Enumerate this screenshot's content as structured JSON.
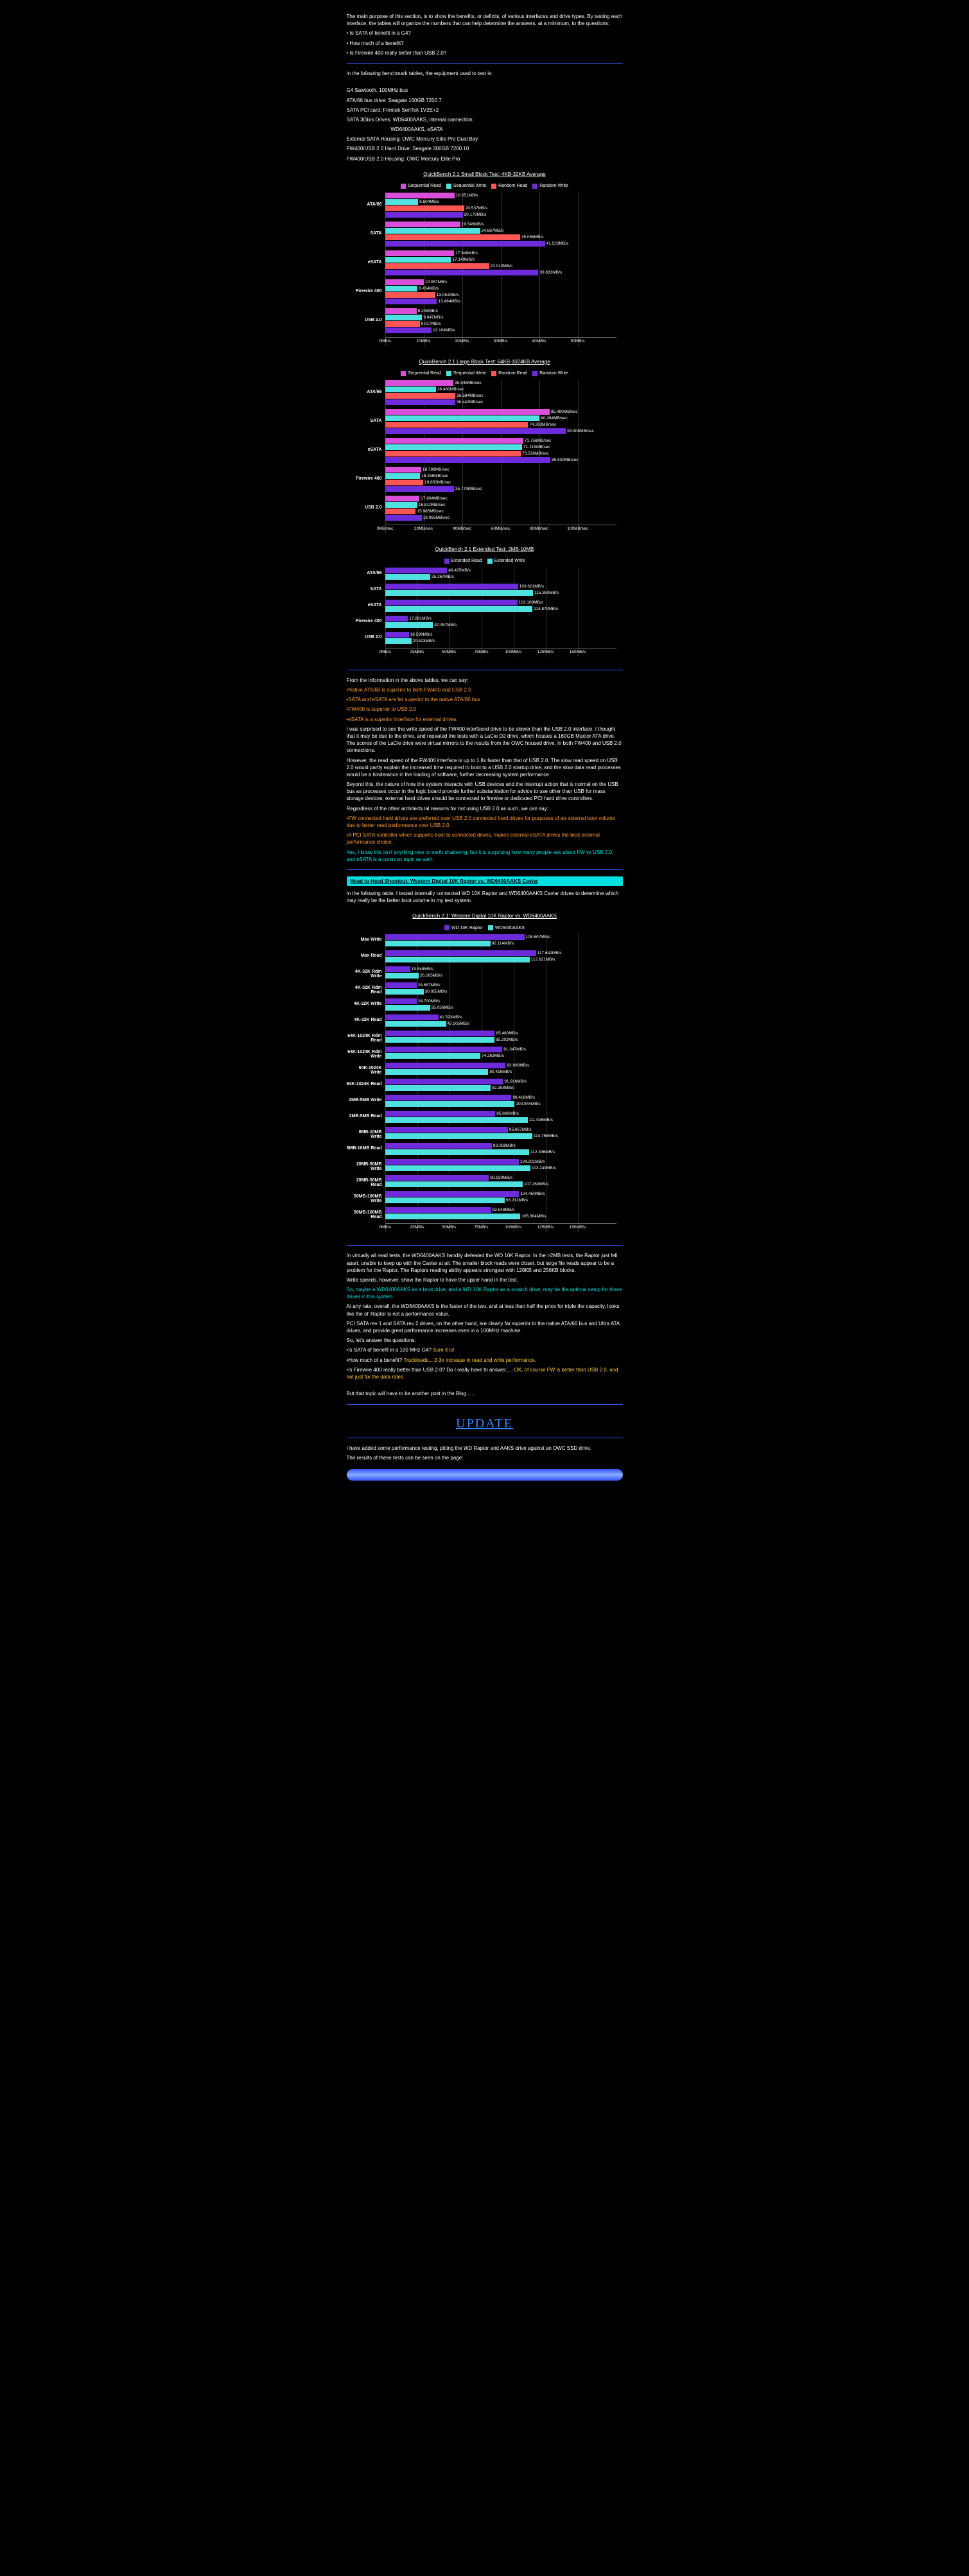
{
  "intro": {
    "p1": "The main purpose of this section, is to show the benefits, or deficits, of various interfaces and drive types. By testing each interface, the tables will organize the numbers that can help determine the answers, at a minimum, to the questions:",
    "q1": "• Is SATA of benefit in a G4?",
    "q2": "• How much of a benefit?",
    "q3": "• Is Firewire 400 really better than USB 2.0?"
  },
  "equip": {
    "lead": "In the following benchmark tables, the equipment used to test is:",
    "lines": [
      "G4 Sawtooth, 100MHz bus",
      "ATA/66 bus drive: Seagate 160GB 7200.7",
      "SATA PCI card: Firmtek SeriTek 1V2E+2",
      "SATA 3Gb/s Drives: WD6400AAKS, internal connection",
      "                               WD6400AAKS, eSATA",
      "External SATA Housing: OWC Mercury Elite Pro Dual Bay",
      "FW400/USB 2.0 Hard Drive: Seagate 300GB 7200.10",
      "FW400/USB 2.0 Housing: OWC Mercury Elite Pro"
    ]
  },
  "series_colors": {
    "sr": "#d94fd9",
    "sw": "#4fe0e0",
    "rr": "#ff5555",
    "rw": "#6e2bdc",
    "er": "#6e2bdc",
    "ew": "#4fe0e0",
    "raptor": "#6e2bdc",
    "aaks": "#4fe0e0"
  },
  "chart1": {
    "title": "QuickBench 2.1 Small Block Test: 4KB-32KB Average",
    "legend": [
      "Sequential Read",
      "Sequential Write",
      "Random Read",
      "Random Write"
    ],
    "xmax": 50,
    "xstep": 10,
    "unit": "MB/s",
    "categories": [
      {
        "name": "ATA/66",
        "values": [
          18.051,
          8.604,
          20.537,
          20.178
        ]
      },
      {
        "name": "SATA",
        "values": [
          19.549,
          24.687,
          35.056,
          41.523
        ]
      },
      {
        "name": "eSATA",
        "values": [
          17.949,
          17.149,
          27.01,
          39.833
        ]
      },
      {
        "name": "Firewire 400",
        "values": [
          10.057,
          8.454,
          13.051,
          13.494
        ]
      },
      {
        "name": "USB 2.0",
        "values": [
          8.209,
          9.647,
          9.017,
          12.104
        ]
      }
    ]
  },
  "chart2": {
    "title": "QuickBench 2.1 Large Block Test: 64KB-1024KB Average",
    "legend": [
      "Sequential Read",
      "Sequential Write",
      "Random Read",
      "Random Write"
    ],
    "xmax": 100,
    "xstep": 20,
    "unit": "MB/sec",
    "categories": [
      {
        "name": "ATA/66",
        "values": [
          35.545,
          26.48,
          36.584,
          36.442
        ]
      },
      {
        "name": "SATA",
        "values": [
          85.48,
          80.264,
          74.263,
          93.908
        ]
      },
      {
        "name": "eSATA",
        "values": [
          71.756,
          71.219,
          70.536,
          85.83
        ]
      },
      {
        "name": "Firewire 400",
        "values": [
          18.789,
          18.256,
          19.85,
          35.779
        ]
      },
      {
        "name": "USB 2.0",
        "values": [
          17.904,
          16.81,
          15.985,
          19.065
        ]
      }
    ]
  },
  "chart3": {
    "title": "QuickBench 2.1 Extended Test: 2MB-10MB",
    "legend": [
      "Extended Read",
      "Extended Write"
    ],
    "xmax": 150,
    "xstep": 25,
    "unit": "MB/s",
    "categories": [
      {
        "name": "ATA/66",
        "values": [
          48.425,
          35.267
        ]
      },
      {
        "name": "SATA",
        "values": [
          103.621,
          115.35
        ]
      },
      {
        "name": "eSATA",
        "values": [
          103.109,
          114.879
        ]
      },
      {
        "name": "Firewire 400",
        "values": [
          17.891,
          37.457
        ]
      },
      {
        "name": "USB 2.0",
        "values": [
          18.599,
          20.523
        ]
      }
    ]
  },
  "analysis": {
    "lead": "From the information in the above tables, we can say:",
    "b1": "•Native ATA/66 is superior to both FW400 and USB 2.0",
    "b2": "•SATA and eSATA are far superior to the native ATA/66 bus",
    "b3": "•FW400 is superior to USB 2.0",
    "b4": "•eSATA is a superior interface for external drives.",
    "p1": "I was surprised to see the write speed of the FW400 interfaced drive to be slower than the USB 2.0 interface. I thought that it may be due to the drive, and repeated the tests with a LaCie D2 drive, which houses a 160GB Maxtor ATA drive. The scores of the LaCie drive were virtual mirrors to the results from the OWC housed drive, in both FW400 and USB 2.0 connections.",
    "p2": "However, the read speed of the FW400 interface is up to 1.8x faster than that of USB 2.0. The slow read speed on USB 2.0 would partly explain the increased time required to boot to a USB 2.0 startup drive, and the slow data read processes would be a hinderance in the loading of software, further decreasing system performance.",
    "p3": "Beyond this, the nature of how the system interacts with USB devices and the interrupt action that is normal on the USB bus as processes occur in the logic board provide further substantiation for advice to use other than USB for mass storage devices; external hard drives should be connected to firewire or dedicated PCI hard drive controllers.",
    "p4": "Regardless of the other architectural reasons for not using USB 2.0 as such, we can say:",
    "b5": "•FW connected hard drives are preferred over USB 2.0 connected hard drives for purposes of an external boot volume due to better read performance over USB 2.0.",
    "b6": "•A PCI SATA controller which supports boot to connected drives, makes external eSATA drives the best external performance choice.",
    "b7": "Yes, I know this isn't anything new or earth shattering, but it is surprising how many people ask about FW vs USB 2.0, and eSATA is a common topic as well."
  },
  "shootout": {
    "heading": "Head to Head Shootout:   Western Digital 10K Raptor vs. WD6400AAKS Caviar",
    "intro": "In the following table, I tested internally connected WD 10K Raptor and WD6400AAKS Caviar drives to determine which may really be the better boot volume in my test system.",
    "chart_title": "QuickBench 2.1:   Western Digital 10K Raptor vs. WD6400AAKS",
    "legend": [
      "WD 10K Raptor",
      "WD6400AAKS"
    ],
    "xmax": 150,
    "xstep": 25,
    "unit": "MB/s",
    "categories": [
      {
        "name": "Max Write",
        "values": [
          108.607,
          82.114
        ]
      },
      {
        "name": "Max Read",
        "values": [
          117.642,
          112.621
        ]
      },
      {
        "name": "4K-32K Rdm Write",
        "values": [
          19.549,
          26.265
        ]
      },
      {
        "name": "4K-32K Rdm Read",
        "values": [
          24.687,
          30.055
        ]
      },
      {
        "name": "4K-32K Write",
        "values": [
          24.7,
          35.056
        ]
      },
      {
        "name": "4K-32K Read",
        "values": [
          41.523,
          47.505
        ]
      },
      {
        "name": "64K-1024K Rdm Read",
        "values": [
          85.48,
          85.202
        ]
      },
      {
        "name": "64K-1024K Rdm Write",
        "values": [
          91.347,
          74.263
        ]
      },
      {
        "name": "64K-1024K Write",
        "values": [
          93.908,
          80.416
        ]
      },
      {
        "name": "64K-1024K Read",
        "values": [
          91.916,
          82.358
        ]
      },
      {
        "name": "2MB-5MB Write",
        "values": [
          98.418,
          100.944
        ]
      },
      {
        "name": "2MB-5MB Read",
        "values": [
          85.88,
          111.026
        ]
      },
      {
        "name": "6MB-10MB Write",
        "values": [
          95.667,
          114.758
        ]
      },
      {
        "name": "6MB-10MB Read",
        "values": [
          83.268,
          112.336
        ]
      },
      {
        "name": "20MB-50MB Write",
        "values": [
          104.201,
          113.249
        ]
      },
      {
        "name": "20MB-50MB Read",
        "values": [
          80.93,
          107.26
        ]
      },
      {
        "name": "50MB-100MB Write",
        "values": [
          104.45,
          93.211
        ]
      },
      {
        "name": "50MB-100MB Read",
        "values": [
          82.548,
          105.364
        ]
      }
    ]
  },
  "conclusion": {
    "p1": "In virtually all read tests, the WD6400AAKS handily defeated the WD 10K Raptor. In the >2MB tests, the Raptor just fell apart, unable to keep up with the Caviar at all. The smaller block reads were closer, but large file reads appear to be a problem for the Raptor. The Raptors reading ability appears strongest with 128KB and 256KB blocks.",
    "p2": "Write speeds, however, show the Raptor to have the upper hand in the test.",
    "p3": "So, maybe a WD6400AAKS as a boot drive, and a WD 10K Raptor as a scratch drive, may be the optimal setup for these drives in this system.",
    "p4": "At any rate, overall, the WD6400AAKS is the faster of the two, and at less than half the price for triple the capacity, looks like the ol' Raptor is not a performance value.",
    "p5": "PCI SATA rev 1 and SATA rev 2 drives, on the other hand, are clearly far superior to the native ATA/66 bus and Ultra ATA drives, and provide great performance increases even in a 100MHz machine.",
    "p6": "So, let's answer the questions:",
    "a1a": "•Is SATA of benefit in a 100 MHz G4? ",
    "a1b": "Sure it is!",
    "a2a": "•How much of a benefit? ",
    "a2b": "Truckloads... 2-3x increase in read and write performance.",
    "a3a": "•Is Firewire 400 really better than USB 2.0? Do I really have to answer..... ",
    "a3b": "OK, of course FW is better than USB 2.0, and not just for the data rates.",
    "p7": "But that topic will have to be another post in the Blog......"
  },
  "update": {
    "h": "UPDATE",
    "p1": "I have added some performance testing, pitting the WD Raptor and AAKS drive against an OWC SSD drive.",
    "p2": "The results of these tests can be seen on the page:"
  }
}
